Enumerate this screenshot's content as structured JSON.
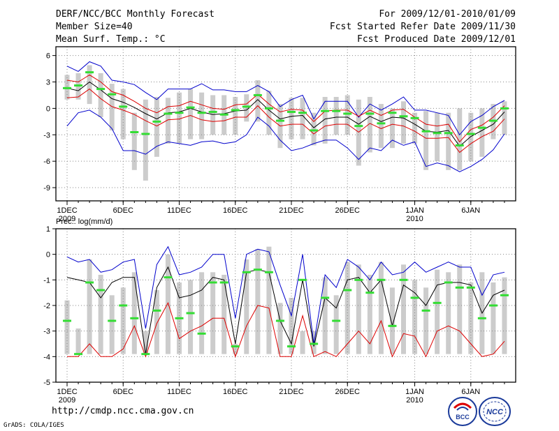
{
  "header": {
    "title": "DERF/NCC/BCC Monthly Forecast",
    "member_size": "Member Size=40",
    "variable1": "Mean Surf. Temp.: °C",
    "period": "For 2009/12/01-2010/01/09",
    "start_date": "Fcst Started Refer Date 2009/11/30",
    "produced_date": "Fcst Produced Date 2009/12/01"
  },
  "footer": {
    "url": "http://cmdp.ncc.cma.gov.cn",
    "credit": "GrADS: COLA/IGES",
    "logo1_text": "BCC",
    "logo2_text": "NCC"
  },
  "colors": {
    "bar": "#cccccc",
    "green": "#33dd33",
    "envelope": "#0000cc",
    "spread": "#dd0000",
    "mean": "#000000"
  },
  "chart_data": [
    {
      "type": "line",
      "title": "Mean Surf. Temp.: °C",
      "ylabel": "Mean Surf. Temp.",
      "ylim": [
        -10.5,
        7
      ],
      "yticks": [
        6,
        3,
        0,
        -3,
        -6,
        -9
      ],
      "xticks": [
        {
          "day": 1,
          "label": "1DEC",
          "sub": "2009"
        },
        {
          "day": 6,
          "label": "6DEC"
        },
        {
          "day": 11,
          "label": "11DEC"
        },
        {
          "day": 16,
          "label": "16DEC"
        },
        {
          "day": 21,
          "label": "21DEC"
        },
        {
          "day": 26,
          "label": "26DEC"
        },
        {
          "day": 32,
          "label": "1JAN",
          "sub": "2010"
        },
        {
          "day": 37,
          "label": "6JAN"
        }
      ],
      "days": [
        1,
        2,
        3,
        4,
        5,
        6,
        7,
        8,
        9,
        10,
        11,
        12,
        13,
        14,
        15,
        16,
        17,
        18,
        19,
        20,
        21,
        22,
        23,
        24,
        25,
        26,
        27,
        28,
        29,
        30,
        31,
        32,
        33,
        34,
        35,
        36,
        37,
        38,
        39,
        40
      ],
      "bar_top": [
        3.8,
        4.0,
        4.9,
        4.0,
        2.8,
        2.2,
        -0.5,
        1.0,
        1.3,
        1.2,
        1.8,
        2.2,
        1.8,
        1.5,
        1.5,
        1.3,
        1.6,
        3.2,
        2.0,
        0.5,
        1.2,
        1.2,
        -0.5,
        1.3,
        1.3,
        1.5,
        1.0,
        1.3,
        0.5,
        0.0,
        0.8,
        -0.5,
        -0.3,
        -0.5,
        -0.5,
        0.0,
        -0.5,
        0.0,
        0.5,
        0.8
      ],
      "bar_bottom": [
        1.0,
        1.0,
        0.5,
        -1.0,
        -2.5,
        -3.5,
        -7.0,
        -8.2,
        -5.5,
        -4.0,
        -4.0,
        -3.5,
        -3.5,
        -3.0,
        -3.0,
        -3.0,
        -1.5,
        -1.5,
        -3.0,
        -4.5,
        -3.5,
        -3.5,
        -4.2,
        -4.0,
        -3.0,
        -3.0,
        -6.5,
        -5.0,
        -4.5,
        -4.5,
        -4.0,
        -4.0,
        -7.0,
        -6.0,
        -7.0,
        -7.0,
        -6.0,
        -5.5,
        -3.5,
        -3.0
      ],
      "green_marks": [
        2.3,
        2.6,
        4.1,
        2.2,
        1.6,
        0.2,
        -2.7,
        -2.9,
        -1.5,
        -0.6,
        -0.5,
        0.1,
        -0.5,
        -0.4,
        -0.7,
        -0.2,
        0.2,
        1.5,
        0.0,
        -1.4,
        -0.4,
        -0.5,
        -2.5,
        -0.3,
        -0.3,
        -0.6,
        -2.0,
        -0.6,
        -1.7,
        -0.5,
        -0.9,
        -1.1,
        -2.6,
        -2.8,
        -2.8,
        -4.2,
        -2.9,
        -2.2,
        -1.4,
        0.0
      ],
      "series": [
        {
          "name": "max",
          "color": "#0000cc",
          "values": [
            4.8,
            4.2,
            5.3,
            4.8,
            3.2,
            3.0,
            2.7,
            1.8,
            1.0,
            2.2,
            2.2,
            2.2,
            2.8,
            2.1,
            2.1,
            1.9,
            1.9,
            2.6,
            1.9,
            0.2,
            1.0,
            1.5,
            -1.2,
            0.8,
            0.8,
            0.8,
            -1.0,
            0.5,
            -0.2,
            0.5,
            1.3,
            -0.2,
            -0.2,
            -0.5,
            -0.8,
            -3.0,
            -1.5,
            -0.8,
            0.2,
            0.9
          ]
        },
        {
          "name": "upper",
          "color": "#dd0000",
          "values": [
            3.2,
            3.0,
            3.8,
            3.0,
            1.9,
            1.5,
            0.8,
            0.0,
            -0.5,
            0.2,
            0.3,
            0.8,
            0.4,
            0.0,
            -0.1,
            0.4,
            0.5,
            1.6,
            0.5,
            -0.4,
            -0.1,
            -0.2,
            -1.5,
            -0.3,
            -0.2,
            -0.2,
            -0.9,
            -0.2,
            -0.8,
            -0.2,
            -0.1,
            -1.0,
            -1.8,
            -2.0,
            -1.8,
            -3.8,
            -2.4,
            -1.9,
            -1.0,
            0.3
          ]
        },
        {
          "name": "mean",
          "color": "#000000",
          "values": [
            2.3,
            2.0,
            3.0,
            2.1,
            1.1,
            0.7,
            0.1,
            -0.6,
            -1.2,
            -0.5,
            -0.4,
            0.0,
            -0.4,
            -0.7,
            -0.6,
            -0.3,
            -0.2,
            1.0,
            -0.2,
            -1.2,
            -0.9,
            -0.8,
            -2.2,
            -1.2,
            -1.0,
            -1.0,
            -1.8,
            -0.9,
            -1.5,
            -1.0,
            -1.1,
            -1.8,
            -2.6,
            -2.7,
            -2.5,
            -4.3,
            -3.2,
            -2.5,
            -1.8,
            -0.4
          ]
        },
        {
          "name": "lower",
          "color": "#dd0000",
          "values": [
            1.2,
            1.3,
            2.2,
            1.1,
            0.2,
            -0.2,
            -0.7,
            -1.4,
            -2.0,
            -1.3,
            -1.2,
            -0.8,
            -1.3,
            -1.5,
            -1.4,
            -1.0,
            -1.0,
            0.3,
            -1.0,
            -2.0,
            -1.8,
            -1.8,
            -2.9,
            -2.0,
            -1.8,
            -1.8,
            -2.7,
            -1.7,
            -2.3,
            -1.8,
            -2.0,
            -2.6,
            -3.4,
            -3.4,
            -3.3,
            -5.0,
            -4.0,
            -3.2,
            -2.6,
            -1.2
          ]
        },
        {
          "name": "min",
          "color": "#0000cc",
          "values": [
            -2.0,
            -0.5,
            -0.2,
            -1.0,
            -2.3,
            -4.8,
            -4.8,
            -5.2,
            -4.3,
            -3.8,
            -4.0,
            -4.2,
            -3.8,
            -3.7,
            -4.0,
            -3.8,
            -3.0,
            -1.0,
            -2.0,
            -3.6,
            -4.8,
            -4.5,
            -4.0,
            -3.6,
            -3.6,
            -4.5,
            -5.8,
            -4.5,
            -4.8,
            -3.6,
            -4.2,
            -3.8,
            -6.6,
            -6.2,
            -6.5,
            -7.2,
            -6.6,
            -5.8,
            -4.7,
            -2.9
          ]
        }
      ]
    },
    {
      "type": "line",
      "title": "Prec.: log(mm/d)",
      "ylabel": "Prec.",
      "ylim": [
        -5,
        1
      ],
      "yticks": [
        1,
        0,
        -1,
        -2,
        -3,
        -4,
        -5
      ],
      "xticks": [
        {
          "day": 1,
          "label": "1DEC",
          "sub": "2009"
        },
        {
          "day": 6,
          "label": "6DEC"
        },
        {
          "day": 11,
          "label": "11DEC"
        },
        {
          "day": 16,
          "label": "16DEC"
        },
        {
          "day": 21,
          "label": "21DEC"
        },
        {
          "day": 26,
          "label": "26DEC"
        },
        {
          "day": 32,
          "label": "1JAN",
          "sub": "2010"
        },
        {
          "day": 37,
          "label": "6JAN"
        }
      ],
      "days": [
        1,
        2,
        3,
        4,
        5,
        6,
        7,
        8,
        9,
        10,
        11,
        12,
        13,
        14,
        15,
        16,
        17,
        18,
        19,
        20,
        21,
        22,
        23,
        24,
        25,
        26,
        27,
        28,
        29,
        30,
        31,
        32,
        33,
        34,
        35,
        36,
        37,
        38,
        39,
        40
      ],
      "bar_top": [
        -1.8,
        -2.9,
        -0.2,
        -0.8,
        -1.6,
        -1.3,
        -0.7,
        -3.0,
        -1.4,
        0.0,
        -1.1,
        -1.0,
        -0.7,
        -0.7,
        -0.8,
        -3.5,
        -0.2,
        0.2,
        0.3,
        -1.9,
        -1.7,
        -3.0,
        -3.0,
        -0.9,
        -1.6,
        -0.3,
        -0.4,
        -0.8,
        -0.3,
        -1.3,
        -0.4,
        -1.0,
        -1.3,
        -0.6,
        -0.7,
        -0.4,
        -1.1,
        -0.7,
        -1.1,
        -0.9
      ],
      "bar_bottom": [
        -3.9,
        -3.9,
        -3.9,
        -3.9,
        -3.9,
        -3.9,
        -3.9,
        -3.9,
        -3.9,
        -3.9,
        -3.9,
        -3.9,
        -3.9,
        -3.9,
        -3.9,
        -3.9,
        -3.9,
        -3.9,
        -3.9,
        -3.9,
        -3.9,
        -3.9,
        -3.9,
        -3.9,
        -3.9,
        -3.9,
        -3.9,
        -3.9,
        -3.9,
        -3.9,
        -3.9,
        -3.9,
        -3.9,
        -3.9,
        -3.9,
        -3.9,
        -3.9,
        -3.9,
        -3.9,
        -3.9
      ],
      "green_marks": [
        -2.6,
        -3.9,
        -1.1,
        -1.4,
        -2.6,
        -2.0,
        -2.5,
        -3.9,
        -2.2,
        -0.9,
        -2.5,
        -2.3,
        -3.1,
        -1.1,
        -1.1,
        -3.6,
        -0.7,
        -0.6,
        -0.7,
        -2.6,
        -3.6,
        -1.0,
        -3.5,
        -1.7,
        -2.6,
        -1.4,
        -1.0,
        -1.5,
        -1.0,
        -2.8,
        -1.0,
        -1.7,
        -2.2,
        -1.9,
        -1.1,
        -1.3,
        -1.3,
        -2.5,
        -2.0,
        -1.6
      ],
      "series": [
        {
          "name": "max",
          "color": "#0000cc",
          "values": [
            -0.1,
            -0.3,
            -0.2,
            -0.7,
            -0.6,
            -0.3,
            -0.2,
            -2.9,
            -0.4,
            0.3,
            -0.8,
            -0.7,
            -0.5,
            0.0,
            0.0,
            -2.5,
            0.0,
            0.2,
            0.1,
            -1.2,
            -2.4,
            0.0,
            -3.5,
            -0.8,
            -1.3,
            -0.2,
            -0.5,
            -1.0,
            -0.3,
            -0.8,
            -0.7,
            -0.3,
            -0.7,
            -0.5,
            -0.3,
            -0.5,
            -0.5,
            -1.6,
            -0.8,
            -0.7
          ]
        },
        {
          "name": "mean",
          "color": "#000000",
          "values": [
            -0.9,
            -1.0,
            -1.1,
            -1.7,
            -1.1,
            -0.9,
            -0.9,
            -3.9,
            -1.3,
            -0.5,
            -1.7,
            -1.6,
            -1.4,
            -0.9,
            -1.0,
            -3.5,
            -0.7,
            -0.6,
            -0.7,
            -2.6,
            -3.5,
            -1.0,
            -3.6,
            -1.7,
            -2.1,
            -1.0,
            -0.9,
            -1.5,
            -1.0,
            -2.8,
            -1.2,
            -1.5,
            -2.0,
            -1.2,
            -1.1,
            -1.1,
            -1.2,
            -2.3,
            -1.6,
            -1.4
          ]
        },
        {
          "name": "min",
          "color": "#dd0000",
          "values": [
            -4.0,
            -4.0,
            -3.5,
            -4.0,
            -4.0,
            -3.7,
            -2.8,
            -4.0,
            -2.7,
            -1.9,
            -3.3,
            -3.0,
            -2.8,
            -2.5,
            -2.5,
            -4.0,
            -2.8,
            -2.0,
            -2.1,
            -4.0,
            -4.0,
            -2.4,
            -4.0,
            -3.8,
            -4.0,
            -3.5,
            -3.0,
            -3.5,
            -2.6,
            -4.0,
            -3.1,
            -3.2,
            -4.0,
            -3.0,
            -2.8,
            -3.0,
            -3.5,
            -4.0,
            -3.9,
            -3.4
          ]
        }
      ]
    }
  ]
}
